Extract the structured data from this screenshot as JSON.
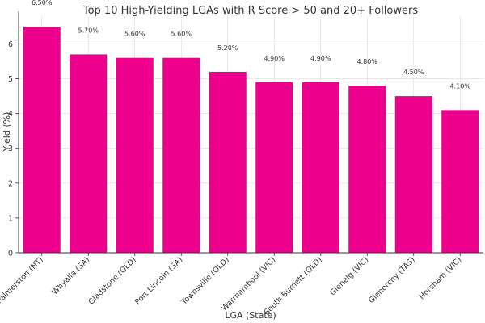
{
  "chart_data": {
    "type": "bar",
    "title": "Top 10 High-Yielding LGAs with R Score > 50 and 20+ Followers",
    "xlabel": "LGA (State)",
    "ylabel": "Yield (%)",
    "categories": [
      "Palmerston (NT)",
      "Whyalla (SA)",
      "Gladstone (QLD)",
      "Port Lincoln (SA)",
      "Townsville (QLD)",
      "Warrnambool (VIC)",
      "South Burnett (QLD)",
      "Glenelg (VIC)",
      "Glenorchy (TAS)",
      "Horsham (VIC)"
    ],
    "values": [
      6.5,
      5.7,
      5.6,
      5.6,
      5.2,
      4.9,
      4.9,
      4.8,
      4.5,
      4.1
    ],
    "data_labels": [
      "6.50%",
      "5.70%",
      "5.60%",
      "5.60%",
      "5.20%",
      "4.90%",
      "4.90%",
      "4.80%",
      "4.50%",
      "4.10%"
    ],
    "yticks": [
      "0",
      "1",
      "2",
      "3",
      "4",
      "5",
      "6"
    ],
    "ylim": [
      0,
      6.8
    ],
    "grid": true,
    "bar_color": "#EC008C"
  }
}
